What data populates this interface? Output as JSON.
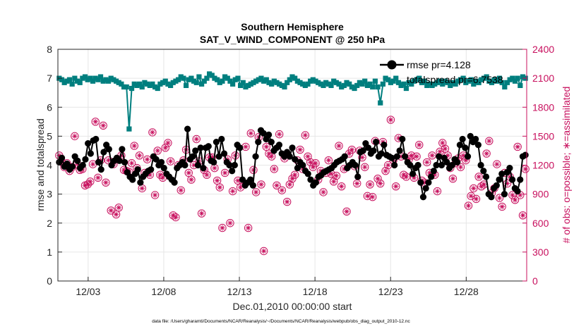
{
  "chart_data": {
    "type": "line",
    "title_line1": "Southern Hemisphere",
    "title_line2": "SAT_V_WIND_COMPONENT @ 250 hPa",
    "xlabel": "Dec.01,2010 00:00:00 start",
    "ylabel_left": "rmse and totalspread",
    "ylabel_right": "# of obs: o=possible; ∗=assimilated",
    "footer": "data file: /Users/gharamti/Documents/NCAR/Reanalysis/~/Documents/NCAR/Reanalysis/webpub/obs_diag_output_2010-12.nc",
    "xlim": [
      0,
      31
    ],
    "ylim_left": [
      0,
      8
    ],
    "ylim_right": [
      0,
      2400
    ],
    "x_tick_values": [
      2,
      7,
      12,
      17,
      22,
      27
    ],
    "x_tick_labels": [
      "12/03",
      "12/08",
      "12/13",
      "12/18",
      "12/23",
      "12/28"
    ],
    "y_left_ticks": [
      "0",
      "1",
      "2",
      "3",
      "4",
      "5",
      "6",
      "7",
      "8"
    ],
    "y_right_ticks": [
      "0",
      "300",
      "600",
      "900",
      "1200",
      "1500",
      "1800",
      "2100",
      "2400"
    ],
    "legend": {
      "position": "top-right",
      "entries": [
        "rmse pr=4.128",
        "totalspread pr=6.7538"
      ]
    },
    "colors": {
      "rmse": "#000000",
      "spread": "#007f7f",
      "obs": "#c8105e",
      "axis": "#262626",
      "grid": "#e6e6e6"
    },
    "series": [
      {
        "name": "rmse",
        "values": [
          4.1,
          4.25,
          3.95,
          4.05,
          3.85,
          3.95,
          4.3,
          4.15,
          3.9,
          4.0,
          4.2,
          4.75,
          4.4,
          4.85,
          4.9,
          4.1,
          3.85,
          4.45,
          4.7,
          4.55,
          4.0,
          4.15,
          4.25,
          4.15,
          4.55,
          4.1,
          3.75,
          3.6,
          3.5,
          3.7,
          3.85,
          3.4,
          3.6,
          3.7,
          3.8,
          3.85,
          4.3,
          4.2,
          4.0,
          4.1,
          3.9,
          3.7,
          3.6,
          3.5,
          3.4,
          3.9,
          4.0,
          4.1,
          4.0,
          5.25,
          4.2,
          4.3,
          4.5,
          4.0,
          4.6,
          3.9,
          4.6,
          4.65,
          4.15,
          4.1,
          4.8,
          4.3,
          4.9,
          4.4,
          4.1,
          4.0,
          3.8,
          4.0,
          4.7,
          4.6,
          3.5,
          3.3,
          3.4,
          3.5,
          3.3,
          4.3,
          4.8,
          5.2,
          5.1,
          4.9,
          5.05,
          4.8,
          4.5,
          4.6,
          4.7,
          4.4,
          4.3,
          4.45,
          4.3,
          4.6,
          4.2,
          3.9,
          4.1,
          4.0,
          3.8,
          3.7,
          3.5,
          3.3,
          3.4,
          3.6,
          3.65,
          3.75,
          3.8,
          3.85,
          3.9,
          4.0,
          4.1,
          4.15,
          4.2,
          4.3,
          3.9,
          4.0,
          4.1,
          4.0,
          3.6,
          4.45,
          4.5,
          4.75,
          4.6,
          4.4,
          4.5,
          4.8,
          4.3,
          4.4,
          4.7,
          4.35,
          4.3,
          4.25,
          4.0,
          4.3,
          4.5,
          4.9,
          4.3,
          4.1,
          4.0,
          3.7,
          3.9,
          4.0,
          3.4,
          2.9,
          3.2,
          3.4,
          3.6,
          3.8,
          4.0,
          4.3,
          4.0,
          4.25,
          4.1,
          3.9,
          4.0,
          4.2,
          4.1,
          4.7,
          4.9,
          4.6,
          4.3,
          5.0,
          4.8,
          4.9,
          4.7,
          4.0,
          3.8,
          3.6,
          3.0,
          2.9,
          3.2,
          3.3,
          3.5,
          3.7,
          3.0,
          3.75,
          3.9,
          3.5,
          3.2,
          3.1,
          3.5,
          4.3,
          4.35
        ]
      },
      {
        "name": "totalspread",
        "values": [
          7.0,
          6.95,
          6.85,
          6.9,
          6.95,
          6.8,
          7.0,
          6.9,
          6.85,
          7.0,
          7.05,
          6.95,
          7.0,
          6.9,
          7.0,
          6.95,
          7.05,
          6.9,
          6.95,
          6.9,
          7.0,
          6.95,
          6.9,
          6.85,
          6.8,
          6.7,
          6.7,
          5.25,
          6.65,
          6.8,
          6.75,
          6.8,
          6.7,
          6.85,
          6.8,
          6.75,
          6.8,
          6.7,
          6.65,
          6.8,
          6.85,
          6.9,
          6.8,
          6.75,
          6.85,
          6.9,
          6.95,
          7.05,
          7.0,
          6.75,
          6.95,
          7.0,
          6.9,
          6.85,
          7.05,
          6.8,
          6.9,
          7.0,
          7.15,
          7.1,
          7.0,
          6.95,
          6.85,
          6.9,
          7.05,
          7.0,
          6.9,
          6.8,
          6.95,
          7.0,
          6.75,
          6.85,
          6.7,
          6.75,
          6.8,
          6.85,
          6.9,
          6.95,
          7.0,
          6.9,
          6.95,
          6.85,
          6.8,
          6.9,
          6.85,
          6.8,
          6.75,
          6.7,
          6.85,
          6.95,
          7.05,
          7.0,
          6.9,
          6.85,
          6.8,
          6.75,
          6.8,
          6.9,
          6.95,
          6.9,
          6.85,
          6.8,
          6.75,
          6.85,
          6.8,
          6.75,
          6.9,
          6.85,
          6.8,
          6.7,
          6.75,
          6.85,
          6.8,
          6.7,
          6.65,
          6.75,
          6.85,
          6.8,
          6.9,
          6.75,
          6.8,
          6.7,
          6.9,
          6.7,
          6.15,
          6.8,
          7.0,
          6.95,
          6.85,
          6.9,
          7.0,
          6.85,
          6.75,
          6.8,
          6.65,
          6.85,
          6.8,
          6.9,
          6.95,
          7.0,
          6.85,
          6.9,
          6.75,
          6.8,
          6.75,
          6.8,
          6.85,
          6.9,
          6.8,
          6.9,
          6.85,
          6.75,
          6.85,
          6.8,
          6.9,
          6.95,
          7.0,
          6.85,
          6.9,
          6.95,
          6.8,
          6.9,
          6.85,
          6.95,
          7.0,
          7.05,
          6.9,
          6.85,
          6.95,
          6.9,
          7.0,
          6.85,
          6.7,
          6.85,
          6.95,
          7.0,
          6.9,
          7.0,
          6.75,
          7.05,
          7.0
        ]
      },
      {
        "name": "obs_possible",
        "axis": "right",
        "values": [
          1300,
          1230,
          1180,
          1220,
          1140,
          1180,
          1500,
          1210,
          1150,
          1160,
          990,
          1000,
          1030,
          1210,
          1650,
          1070,
          1250,
          1610,
          1020,
          1250,
          730,
          1210,
          690,
          760,
          1300,
          1150,
          1140,
          1130,
          1220,
          1400,
          1170,
          1300,
          960,
          1120,
          1260,
          1100,
          1540,
          890,
          1350,
          1100,
          1070,
          1380,
          1430,
          1240,
          680,
          660,
          1200,
          940,
          1250,
          1360,
          1120,
          1050,
          1200,
          1470,
          1240,
          700,
          1150,
          1100,
          1280,
          1280,
          1170,
          1040,
          970,
          550,
          1120,
          1260,
          600,
          930,
          1300,
          1040,
          970,
          1020,
          1390,
          550,
          1530,
          1150,
          920,
          1490,
          1000,
          310,
          1390,
          1320,
          1290,
          1160,
          990,
          1520,
          940,
          1270,
          820,
          1000,
          1060,
          1100,
          1250,
          1360,
          1160,
          1510,
          1290,
          1230,
          1180,
          1220,
          1050,
          1140,
          920,
          1120,
          1250,
          1110,
          1030,
          1090,
          1400,
          980,
          1160,
          720,
          1320,
          1360,
          1190,
          1010,
          1350,
          1280,
          1180,
          880,
          1000,
          870,
          1450,
          1060,
          1010,
          1440,
          1140,
          1200,
          1670,
          1250,
          980,
          1480,
          1290,
          1100,
          1080,
          1260,
          1300,
          1070,
          1290,
          1410,
          1040,
          1020,
          1230,
          1120,
          1300,
          1100,
          930,
          1340,
          1430,
          1370,
          1300,
          1170,
          1060,
          1220,
          1270,
          1180,
          1300,
          1250,
          780,
          880,
          960,
          850,
          1080,
          980,
          1000,
          1320,
          1450,
          910,
          960,
          1210,
          860,
          770,
          1120,
          1010,
          1080,
          890,
          840,
          1390,
          890,
          680,
          1160
        ]
      },
      {
        "name": "obs_assimilated",
        "axis": "right",
        "values": [
          1300,
          1230,
          1180,
          1220,
          1140,
          1180,
          1500,
          1210,
          1150,
          1160,
          990,
          1000,
          1030,
          1210,
          1650,
          1070,
          1250,
          1610,
          1020,
          1250,
          730,
          1210,
          690,
          760,
          1300,
          1150,
          1140,
          1130,
          1220,
          1400,
          1170,
          1300,
          960,
          1120,
          1260,
          1100,
          1540,
          890,
          1350,
          1100,
          1070,
          1380,
          1430,
          1240,
          680,
          660,
          1200,
          940,
          1250,
          1360,
          1120,
          1050,
          1200,
          1470,
          1240,
          700,
          1150,
          1100,
          1280,
          1280,
          1170,
          1040,
          970,
          550,
          1120,
          1260,
          600,
          930,
          1300,
          1040,
          970,
          1020,
          1390,
          550,
          1530,
          1150,
          920,
          1490,
          1000,
          310,
          1390,
          1320,
          1290,
          1160,
          990,
          1520,
          940,
          1270,
          820,
          1000,
          1060,
          1100,
          1250,
          1360,
          1160,
          1510,
          1290,
          1230,
          1180,
          1220,
          1050,
          1140,
          920,
          1120,
          1250,
          1110,
          1030,
          1090,
          1400,
          980,
          1160,
          720,
          1320,
          1360,
          1190,
          1010,
          1350,
          1280,
          1180,
          880,
          1000,
          870,
          1450,
          1060,
          1010,
          1440,
          1140,
          1200,
          1670,
          1250,
          980,
          1480,
          1290,
          1100,
          1080,
          1260,
          1300,
          1070,
          1290,
          1410,
          1040,
          1020,
          1230,
          1120,
          1300,
          1100,
          930,
          1340,
          1430,
          1370,
          1300,
          1170,
          1060,
          1220,
          1270,
          1180,
          1300,
          1250,
          780,
          880,
          960,
          850,
          1080,
          980,
          1000,
          1320,
          1450,
          910,
          960,
          1210,
          860,
          770,
          1120,
          1010,
          1080,
          890,
          840,
          1390,
          890,
          680,
          1160
        ]
      }
    ]
  }
}
